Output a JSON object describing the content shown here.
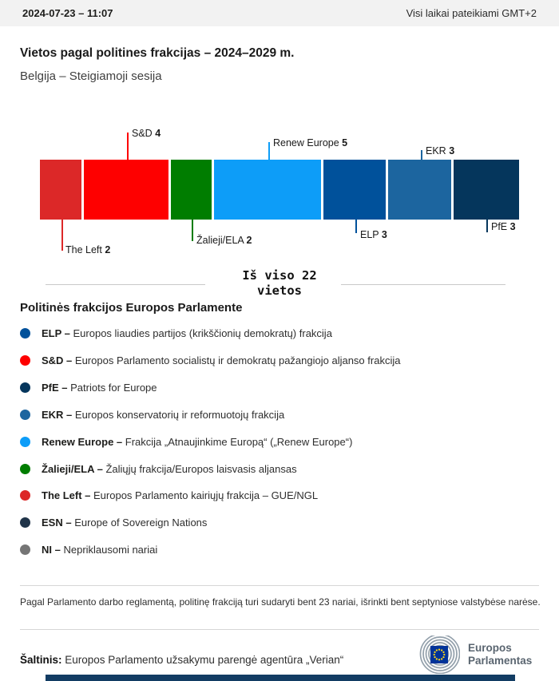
{
  "header": {
    "datetime": "2024-07-23 – 11:07",
    "timezone_note": "Visi laikai pateikiami GMT+2"
  },
  "title": "Vietos pagal politines frakcijas – 2024–2029 m.",
  "subtitle": "Belgija – Steigiamoji sesija",
  "chart_data": {
    "type": "bar",
    "title": "Vietos pagal politines frakcijas – 2024–2029 m.",
    "subtitle": "Belgija – Steigiamoji sesija",
    "total_seats": 22,
    "total_label_line1": "Iš viso 22",
    "total_label_line2": "vietos",
    "orientation": "horizontal-stacked",
    "segments": [
      {
        "name": "The Left",
        "seats": 2,
        "color": "#dc2828",
        "label_position": "below"
      },
      {
        "name": "S&D",
        "seats": 4,
        "color": "#fe0000",
        "label_position": "above"
      },
      {
        "name": "Žalieji/ELA",
        "seats": 2,
        "color": "#007d00",
        "label_position": "below"
      },
      {
        "name": "Renew Europe",
        "seats": 5,
        "color": "#0d9df8",
        "label_position": "above"
      },
      {
        "name": "ELP",
        "seats": 3,
        "color": "#00519b",
        "label_position": "below"
      },
      {
        "name": "EKR",
        "seats": 3,
        "color": "#1c659f",
        "label_position": "above"
      },
      {
        "name": "PfE",
        "seats": 3,
        "color": "#05365c",
        "label_position": "below"
      }
    ]
  },
  "legend": {
    "heading": "Politinės frakcijos Europos Parlamente",
    "separator": "– ",
    "items": [
      {
        "abbr": "ELP",
        "desc": "Europos liaudies partijos (krikščionių demokratų) frakcija",
        "color": "#00519b"
      },
      {
        "abbr": "S&D",
        "desc": "Europos Parlamento socialistų ir demokratų pažangiojo aljanso frakcija",
        "color": "#fe0000"
      },
      {
        "abbr": "PfE",
        "desc": "Patriots for Europe",
        "color": "#05365c"
      },
      {
        "abbr": "EKR",
        "desc": "Europos konservatorių ir reformuotojų frakcija",
        "color": "#1c659f"
      },
      {
        "abbr": "Renew Europe",
        "desc": "Frakcija „Atnaujinkime Europą“ („Renew Europe“)",
        "color": "#0d9df8"
      },
      {
        "abbr": "Žalieji/ELA",
        "desc": "Žaliųjų frakcija/Europos laisvasis aljansas",
        "color": "#007d00"
      },
      {
        "abbr": "The Left",
        "desc": "Europos Parlamento kairiųjų frakcija – GUE/NGL",
        "color": "#dc2828"
      },
      {
        "abbr": "ESN",
        "desc": "Europe of Sovereign Nations",
        "color": "#203449"
      },
      {
        "abbr": "NI",
        "desc": "Nepriklausomi nariai",
        "color": "#757575"
      }
    ]
  },
  "footnote": "Pagal Parlamento darbo reglamentą, politinę frakciją turi sudaryti bent 23 nariai, išrinkti bent septyniose valstybėse narėse.",
  "source": {
    "label": "Šaltinis:",
    "text": " Europos Parlamento užsakymu parengė agentūra „Verian“"
  },
  "logo": {
    "line1": "Europos",
    "line2": "Parlamentas",
    "flag_color": "#003399",
    "star_color": "#ffd617",
    "arc_color": "#93a0ab"
  }
}
